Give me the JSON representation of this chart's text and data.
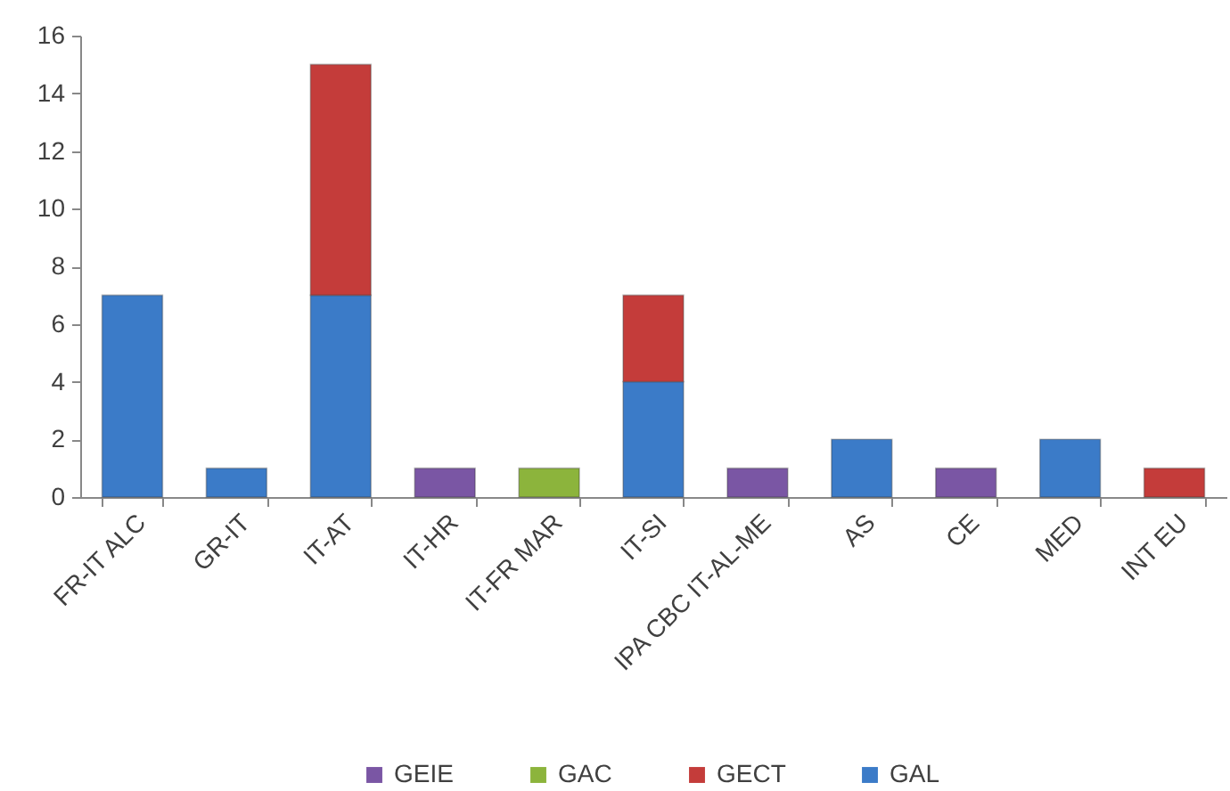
{
  "chart_data": {
    "type": "bar",
    "stacked": true,
    "categories": [
      "FR-IT ALC",
      "GR-IT",
      "IT-AT",
      "IT-HR",
      "IT-FR MAR",
      "IT-SI",
      "IPA CBC IT-AL-ME",
      "AS",
      "CE",
      "MED",
      "INT EU"
    ],
    "series": [
      {
        "name": "GAL",
        "color": "#3b7bc8",
        "values": [
          7,
          1,
          7,
          null,
          null,
          4,
          null,
          2,
          null,
          2,
          null
        ]
      },
      {
        "name": "GECT",
        "color": "#c43c3a",
        "values": [
          null,
          null,
          8,
          null,
          null,
          3,
          null,
          null,
          null,
          null,
          1
        ]
      },
      {
        "name": "GAC",
        "color": "#8cb43c",
        "values": [
          null,
          null,
          null,
          null,
          1,
          null,
          null,
          null,
          null,
          null,
          null
        ]
      },
      {
        "name": "GEIE",
        "color": "#7a56a4",
        "values": [
          null,
          null,
          null,
          1,
          null,
          null,
          1,
          null,
          1,
          null,
          null
        ]
      }
    ],
    "ylim": [
      0,
      16
    ],
    "yticks": [
      0,
      2,
      4,
      6,
      8,
      10,
      12,
      14,
      16
    ],
    "legend": "bottom"
  }
}
